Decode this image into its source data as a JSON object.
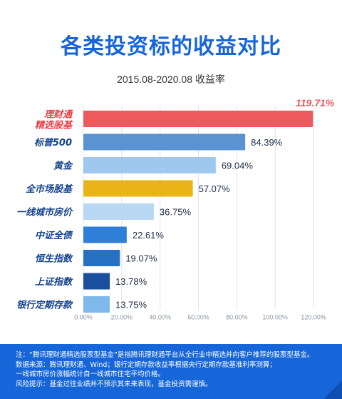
{
  "title": "各类投资标的收益对比",
  "subtitle": "2015.08-2020.08 收益率",
  "chart_data": {
    "type": "bar",
    "orientation": "horizontal",
    "categories": [
      [
        "理财通",
        "精选股基"
      ],
      [
        "标普500"
      ],
      [
        "黄金"
      ],
      [
        "全市场股基"
      ],
      [
        "一线城市房价"
      ],
      [
        "中证全债"
      ],
      [
        "恒生指数"
      ],
      [
        "上证指数"
      ],
      [
        "银行定期存款"
      ]
    ],
    "values": [
      119.71,
      84.39,
      69.04,
      57.07,
      36.75,
      22.61,
      19.07,
      13.78,
      13.75
    ],
    "value_labels": [
      "119.71%",
      "84.39%",
      "69.04%",
      "57.07%",
      "36.75%",
      "22.61%",
      "19.07%",
      "13.78%",
      "13.75%"
    ],
    "colors": [
      "#ec5a5e",
      "#5b93d2",
      "#9ec8ee",
      "#eab316",
      "#b9d8f4",
      "#2f7fd9",
      "#2770c4",
      "#1a4e9e",
      "#7fb8ea"
    ],
    "label_colors": [
      "#ec5a5e",
      "#1f2d4a",
      "#1f2d4a",
      "#1f2d4a",
      "#1f2d4a",
      "#1f2d4a",
      "#1f2d4a",
      "#1f2d4a",
      "#1f2d4a"
    ],
    "category_label_colors": [
      "#ec3f46",
      "#14438d",
      "#14438d",
      "#14438d",
      "#14438d",
      "#14438d",
      "#14438d",
      "#14438d",
      "#14438d"
    ],
    "xlim": [
      0,
      120
    ],
    "x_ticks": [
      "0.00%",
      "20.00%",
      "40.00%",
      "60.00%",
      "80.00%",
      "100.00%",
      "120.00%"
    ],
    "x_tick_values": [
      0,
      20,
      40,
      60,
      80,
      100,
      120
    ],
    "grid": true
  },
  "notes": [
    "注：“腾讯理财通精选股票型基金”是指腾讯理财通平台从全行业中精选并向客户推荐的股票型基金。",
    "数据来源：腾讯理财通、Wind；银行定期存款收益率根据央行定期存款基准利率测算；",
    "一线城市房价涨幅统计自一线城市住宅平均价格。",
    "风险提示：基金过往业绩并不预示其未来表现，基金投资需谨慎。"
  ]
}
